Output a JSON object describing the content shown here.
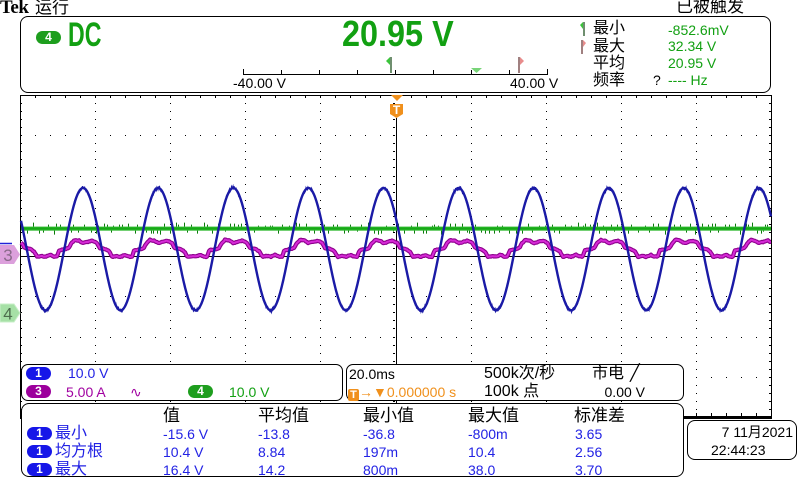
{
  "header": {
    "brand": "Tek",
    "run_state": "运行",
    "trigger_state": "已被触发"
  },
  "readout": {
    "channel": "4",
    "coupling": "DC",
    "value": "20.95 V",
    "scale_min": "-40.00 V",
    "scale_max": "40.00 V",
    "stats": [
      {
        "label": "最小",
        "value": "-852.6mV",
        "marker": "min-flag"
      },
      {
        "label": "最大",
        "value": "32.34 V",
        "marker": "max-flag"
      },
      {
        "label": "平均",
        "value": "20.95 V"
      },
      {
        "label": "频率",
        "prefix": "?",
        "value": "---- Hz"
      }
    ]
  },
  "display": {
    "trigger_marker": "T",
    "channel_markers": {
      "ch3": "3",
      "ch4": "4"
    }
  },
  "channels": [
    {
      "id": "1",
      "scale": "10.0 V"
    },
    {
      "id": "3",
      "scale": "5.00 A",
      "bandwidth_icon": "∿"
    },
    {
      "id": "4",
      "scale": "10.0 V"
    }
  ],
  "timebase": {
    "scale": "20.0ms",
    "trigger_icon": "T",
    "arrow_icon": "→",
    "position_icon": "▼",
    "position": "0.000000 s",
    "sample_rate": "500k次/秒",
    "record_length": "100k 点",
    "trigger_source": "市电",
    "trigger_slope_icon": "╱",
    "trigger_level": "0.00 V"
  },
  "measurements": {
    "headers": [
      "值",
      "平均值",
      "最小值",
      "最大值",
      "标准差"
    ],
    "rows": [
      {
        "source": "1",
        "name": "最小",
        "values": [
          "-15.6 V",
          "-13.8",
          "-36.8",
          "-800m",
          "3.65"
        ]
      },
      {
        "source": "1",
        "name": "均方根",
        "values": [
          "10.4 V",
          "8.84",
          "197m",
          "10.4",
          "2.56"
        ]
      },
      {
        "source": "1",
        "name": "最大",
        "values": [
          "16.4 V",
          "14.2",
          "800m",
          "38.0",
          "3.70"
        ]
      }
    ]
  },
  "datetime": {
    "date": "7 11月2021",
    "time": "22:44:23"
  },
  "colors": {
    "ch1": "#1616e8",
    "ch3": "#9c009c",
    "ch4": "#1e9e1e",
    "trigger": "#f0901c"
  },
  "waveforms": [
    {
      "channel": "4",
      "type": "dc",
      "offset_div": 0.68,
      "color": "#22b422",
      "spike_color": "#0b7a0b"
    },
    {
      "channel": "3",
      "type": "table",
      "offset_div": 0.0,
      "period_div": 1.0,
      "peak_at_div": 0.84,
      "color": "#d62ad6",
      "edge_color": "#8c008c",
      "shape": [
        [
          -0.5,
          -0.02
        ],
        [
          -0.44,
          0.03
        ],
        [
          -0.4,
          -0.01
        ],
        [
          -0.35,
          -0.02
        ],
        [
          -0.32,
          0.14
        ],
        [
          -0.24,
          0.17
        ],
        [
          -0.19,
          0.2
        ],
        [
          -0.16,
          0.31
        ],
        [
          -0.11,
          0.4
        ],
        [
          -0.05,
          0.38
        ],
        [
          0.0,
          0.32
        ],
        [
          0.06,
          0.35
        ],
        [
          0.12,
          0.38
        ],
        [
          0.18,
          0.33
        ],
        [
          0.22,
          0.2
        ],
        [
          0.3,
          0.17
        ],
        [
          0.35,
          0.11
        ],
        [
          0.39,
          -0.02
        ],
        [
          0.45,
          0.0
        ],
        [
          0.5,
          -0.02
        ]
      ]
    },
    {
      "channel": "1",
      "type": "sine",
      "offset_div": 0.17,
      "amplitude_div": 1.52,
      "period_div": 1.0,
      "peak_at_div": 0.84,
      "color": "#1a1aa6"
    }
  ]
}
